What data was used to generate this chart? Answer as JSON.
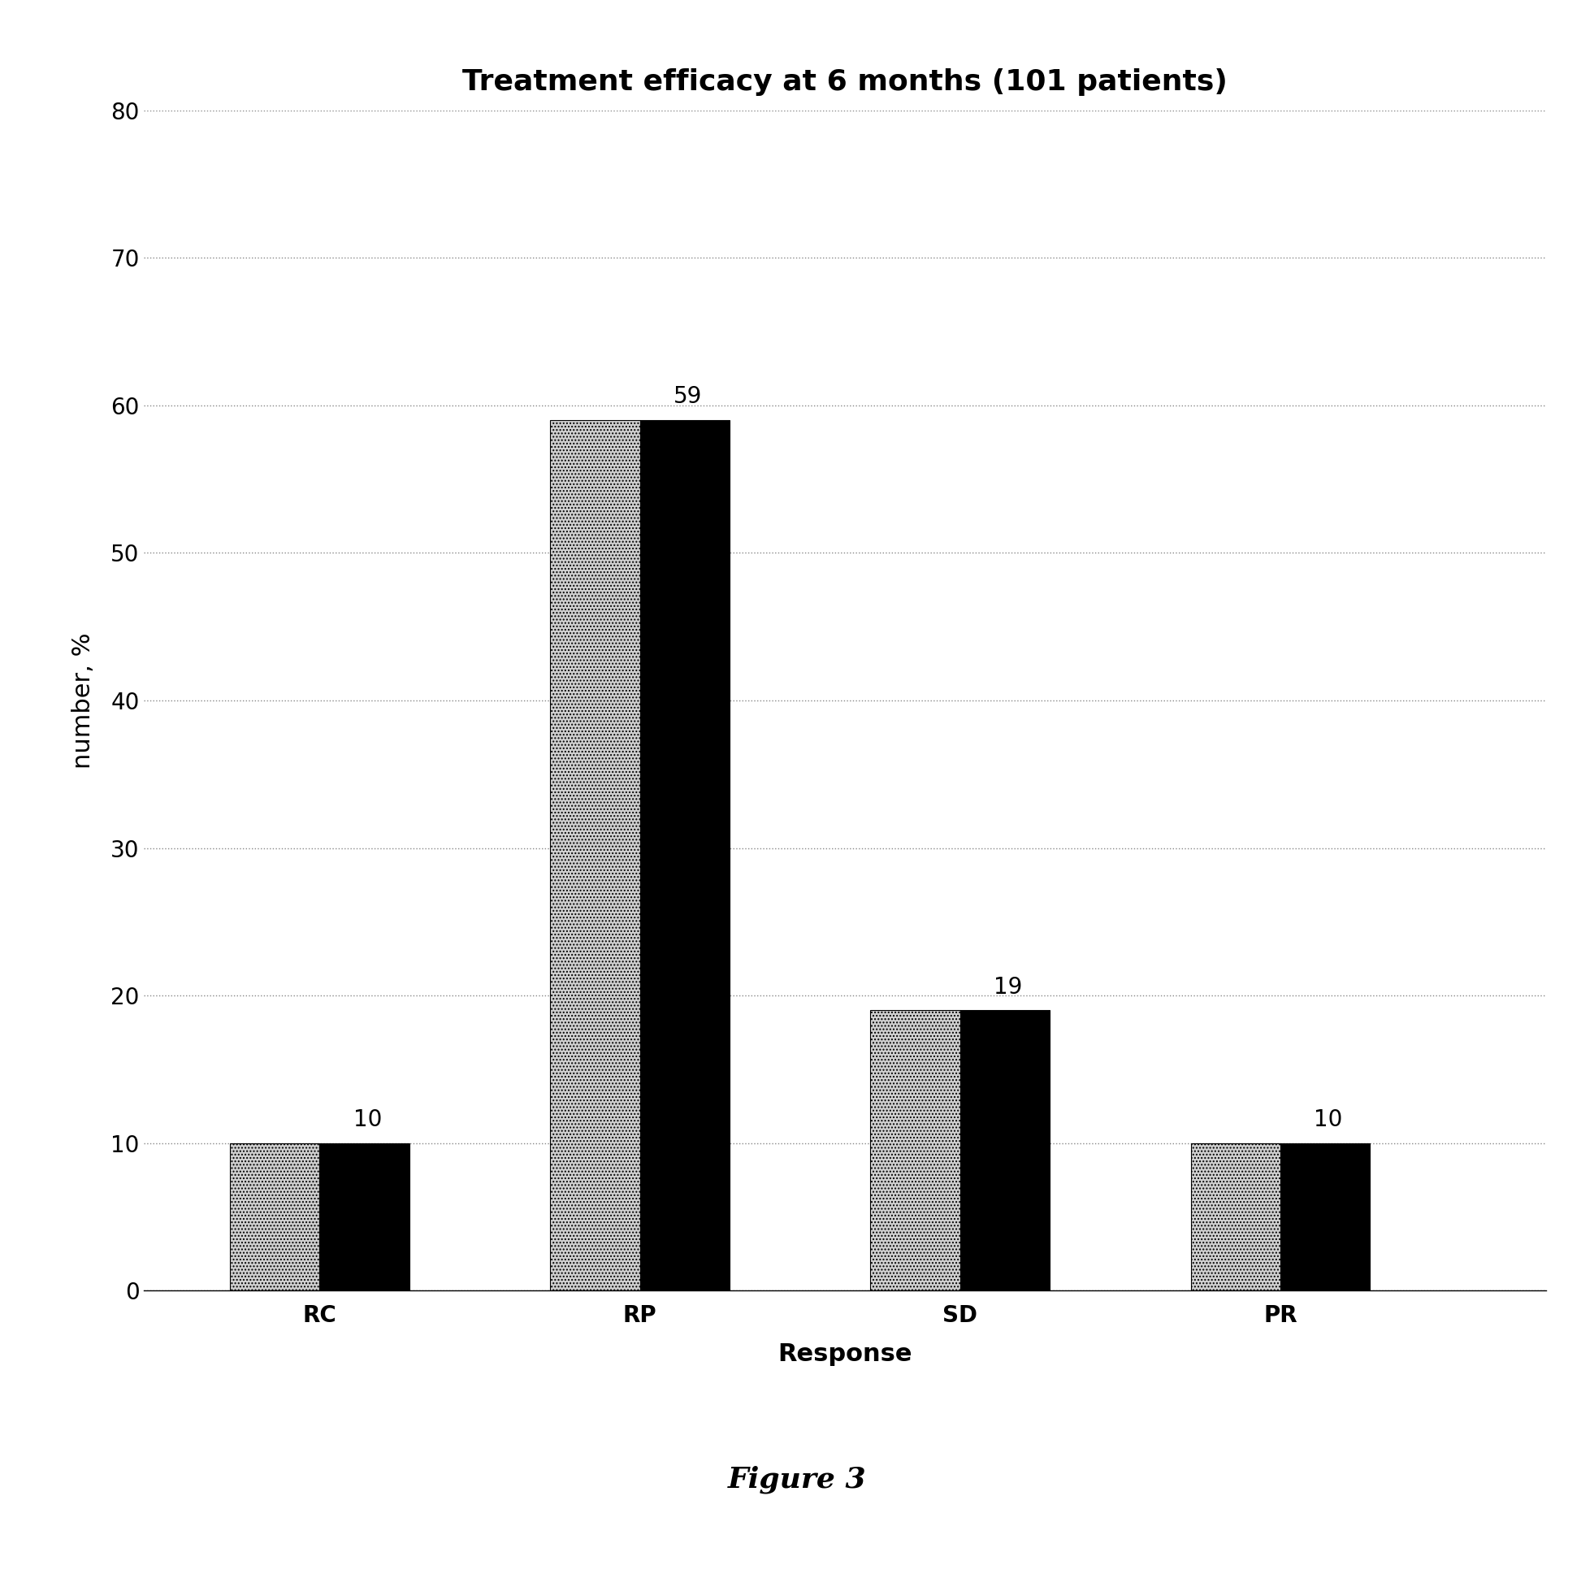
{
  "title": "Treatment efficacy at 6 months (101 patients)",
  "categories": [
    "RC",
    "RP",
    "SD",
    "PR"
  ],
  "values": [
    10,
    59,
    19,
    10
  ],
  "xlabel": "Response",
  "ylabel": "number, %",
  "ylim": [
    0,
    80
  ],
  "yticks": [
    0,
    10,
    20,
    30,
    40,
    50,
    60,
    70,
    80
  ],
  "bar_dotted_color": "#d0d0d0",
  "bar_solid_color": "#000000",
  "title_fontsize": 26,
  "axis_label_fontsize": 22,
  "tick_fontsize": 20,
  "annotation_fontsize": 20,
  "figure_caption": "Figure 3",
  "caption_fontsize": 26,
  "background_color": "#ffffff",
  "bar_width": 0.28,
  "bar_gap": 0.0
}
